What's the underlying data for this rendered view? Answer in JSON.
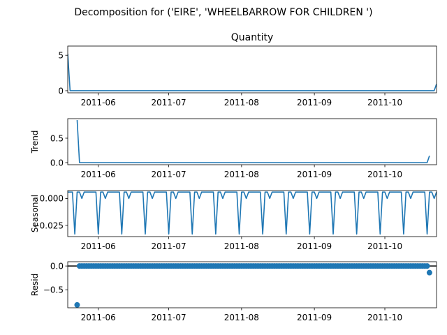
{
  "chart_data": {
    "type": "line",
    "title": "Decomposition for ('EIRE', 'WHEELBARROW FOR CHILDREN ')",
    "color": "#1f77b4",
    "x_ticks": [
      "2011-06",
      "2011-07",
      "2011-08",
      "2011-09",
      "2011-10"
    ],
    "x_range": [
      "2011-05-19",
      "2011-10-23"
    ],
    "panels": [
      {
        "id": "observed",
        "title": "Quantity",
        "ylabel": "",
        "kind": "line",
        "yticks": [
          0,
          5
        ],
        "ytick_labels": [
          "0",
          "5"
        ],
        "ylim": [
          -0.3,
          6.3
        ],
        "points": [
          [
            "2011-05-19",
            5.2
          ],
          [
            "2011-05-20",
            0
          ],
          [
            "2011-10-22",
            0
          ],
          [
            "2011-10-23",
            0.95
          ]
        ]
      },
      {
        "id": "trend",
        "title": "",
        "ylabel": "Trend",
        "kind": "line",
        "yticks": [
          0,
          0.5
        ],
        "ytick_labels": [
          "0.0",
          "0.5"
        ],
        "ylim": [
          -0.043,
          0.9
        ],
        "points": [
          [
            "2011-05-23",
            0.87
          ],
          [
            "2011-05-24",
            0
          ],
          [
            "2011-10-19",
            0
          ],
          [
            "2011-10-20",
            0.14
          ]
        ]
      },
      {
        "id": "seasonal",
        "title": "",
        "ylabel": "Seasonal",
        "kind": "seasonal",
        "yticks": [
          0,
          -0.025
        ],
        "ytick_labels": [
          "0.000",
          "−0.025"
        ],
        "ylim": [
          -0.0354,
          0.0074
        ],
        "pattern": [
          0.006,
          0.006,
          0.006,
          -0.033,
          0.006,
          0.006,
          0,
          0.006,
          0.006,
          0.006
        ],
        "start": "2011-05-19",
        "end": "2011-10-23",
        "step_days": 1
      },
      {
        "id": "resid",
        "title": "",
        "ylabel": "Resid",
        "kind": "scatter",
        "yticks": [
          0,
          -0.5
        ],
        "ytick_labels": [
          "0.0",
          "−0.5"
        ],
        "ylim": [
          -0.88,
          0.09
        ],
        "baseline": 0,
        "start": "2011-05-24",
        "end": "2011-10-19",
        "step_days": 1,
        "default_value": 0,
        "outliers": [
          [
            "2011-05-23",
            -0.82
          ],
          [
            "2011-10-20",
            -0.14
          ]
        ]
      }
    ]
  }
}
